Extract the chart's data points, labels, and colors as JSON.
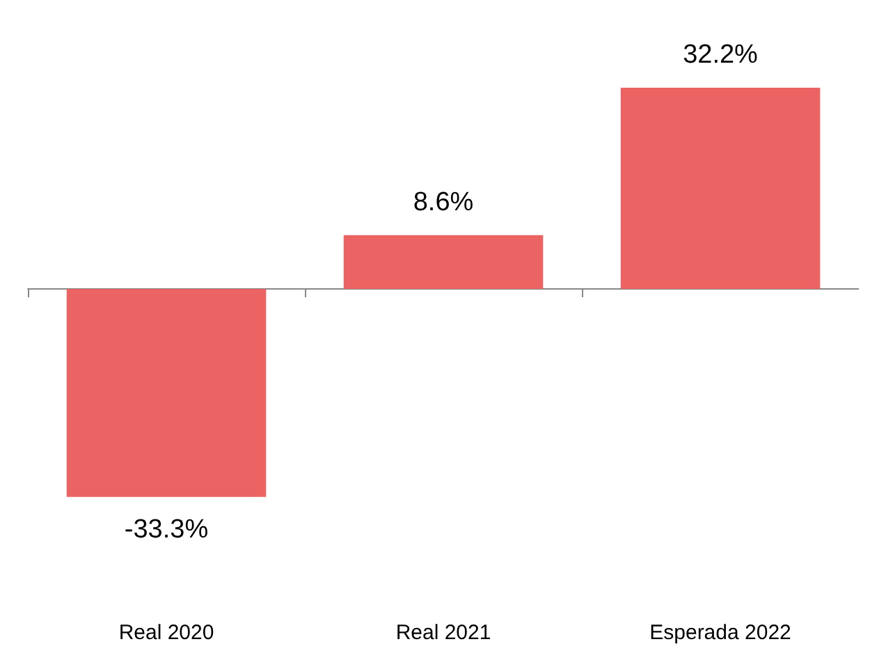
{
  "chart_data": {
    "type": "bar",
    "categories": [
      "Real 2020",
      "Real 2021",
      "Esperada 2022"
    ],
    "values": [
      -33.3,
      8.6,
      32.2
    ],
    "value_labels": [
      "-33.3%",
      "8.6%",
      "32.2%"
    ],
    "color": "#eb6363"
  }
}
